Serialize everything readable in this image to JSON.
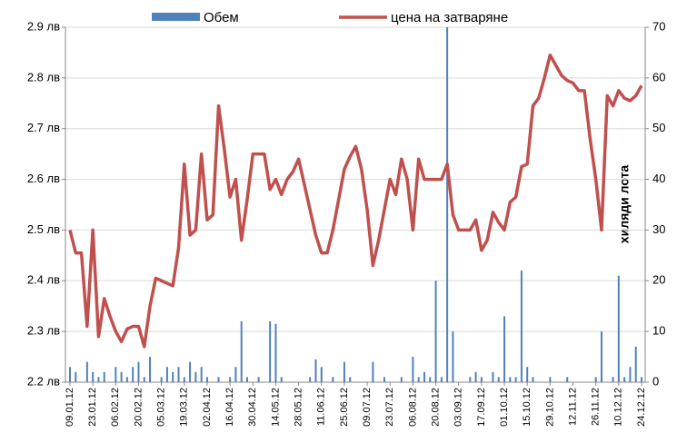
{
  "chart_data": {
    "type": "combo",
    "y_axis_label": "хиляди лота",
    "categories": [
      "09.01.12",
      null,
      null,
      null,
      "23.01.12",
      null,
      null,
      null,
      "06.02.12",
      null,
      null,
      null,
      "20.02.12",
      null,
      null,
      null,
      "05.03.12",
      null,
      null,
      null,
      "19.03.12",
      null,
      null,
      null,
      "02.04.12",
      null,
      null,
      null,
      "16.04.12",
      null,
      null,
      null,
      "30.04.12",
      null,
      null,
      null,
      "14.05.12",
      null,
      null,
      null,
      "28.05.12",
      null,
      null,
      null,
      "11.06.12",
      null,
      null,
      null,
      "25.06.12",
      null,
      null,
      null,
      "09.07.12",
      null,
      null,
      null,
      "23.07.12",
      null,
      null,
      null,
      "06.08.12",
      null,
      null,
      null,
      "20.08.12",
      null,
      null,
      null,
      "03.09.12",
      null,
      null,
      null,
      "17.09.12",
      null,
      null,
      null,
      "01.10.12",
      null,
      null,
      null,
      "15.10.12",
      null,
      null,
      null,
      "29.10.12",
      null,
      null,
      null,
      "12.11.12",
      null,
      null,
      null,
      "26.11.12",
      null,
      null,
      null,
      "10.12.12",
      null,
      null,
      null,
      "24.12.12"
    ],
    "series": [
      {
        "name": "Обем",
        "type": "bar",
        "axis": "y2",
        "color": "#4f81bd",
        "values": [
          3,
          2,
          0,
          4,
          2,
          1,
          2,
          0,
          3,
          2,
          1,
          3,
          4,
          1,
          5,
          0,
          1,
          3,
          2,
          3,
          1,
          4,
          2,
          3,
          1,
          0,
          1,
          0,
          1,
          3,
          12,
          1,
          0,
          1,
          0,
          12,
          11.5,
          1,
          0,
          0,
          0,
          0,
          1,
          4.5,
          3,
          0,
          1,
          0,
          4,
          1,
          0,
          0,
          0,
          4,
          0,
          1,
          0,
          0,
          1,
          0,
          5,
          1,
          2,
          1,
          20,
          1,
          70,
          10,
          0,
          0,
          1,
          2,
          1,
          0,
          2,
          1,
          13,
          1,
          1,
          22,
          3,
          1,
          0,
          0,
          1,
          0,
          0,
          1,
          0,
          0,
          0,
          0,
          1,
          10,
          0,
          1,
          21,
          1,
          3,
          7,
          1
        ]
      },
      {
        "name": "цена на затваряне",
        "type": "line",
        "color": "#c0504d",
        "values": [
          2.5,
          2.455,
          2.455,
          2.31,
          2.5,
          2.29,
          2.365,
          2.33,
          2.3,
          2.28,
          2.305,
          2.31,
          2.31,
          2.27,
          2.35,
          2.405,
          2.4,
          2.395,
          2.39,
          2.465,
          2.63,
          2.49,
          2.5,
          2.65,
          2.52,
          2.53,
          2.745,
          2.66,
          2.565,
          2.6,
          2.48,
          2.56,
          2.65,
          2.65,
          2.65,
          2.58,
          2.6,
          2.57,
          2.6,
          2.615,
          2.64,
          2.59,
          2.54,
          2.49,
          2.455,
          2.455,
          2.5,
          2.56,
          2.62,
          2.645,
          2.665,
          2.62,
          2.54,
          2.43,
          2.48,
          2.54,
          2.6,
          2.57,
          2.64,
          2.6,
          2.5,
          2.64,
          2.6,
          2.6,
          2.6,
          2.6,
          2.63,
          2.53,
          2.5,
          2.5,
          2.5,
          2.52,
          2.46,
          2.48,
          2.535,
          2.515,
          2.5,
          2.555,
          2.565,
          2.625,
          2.63,
          2.745,
          2.76,
          2.8,
          2.845,
          2.825,
          2.805,
          2.795,
          2.79,
          2.775,
          2.775,
          2.68,
          2.6,
          2.5,
          2.765,
          2.745,
          2.775,
          2.76,
          2.755,
          2.765,
          2.785
        ]
      }
    ],
    "ylim": [
      2.2,
      2.9
    ],
    "yticks": [
      {
        "value": 2.2,
        "label": "2.2 лв"
      },
      {
        "value": 2.3,
        "label": "2.3 лв"
      },
      {
        "value": 2.4,
        "label": "2.4 лв"
      },
      {
        "value": 2.5,
        "label": "2.5 лв"
      },
      {
        "value": 2.6,
        "label": "2.6 лв"
      },
      {
        "value": 2.7,
        "label": "2.7 лв"
      },
      {
        "value": 2.8,
        "label": "2.8 лв"
      },
      {
        "value": 2.9,
        "label": "2.9 лв"
      }
    ],
    "y2lim": [
      0,
      70
    ],
    "y2ticks": [
      0,
      10,
      20,
      30,
      40,
      50,
      60,
      70
    ],
    "grid": true,
    "legend": "top"
  }
}
